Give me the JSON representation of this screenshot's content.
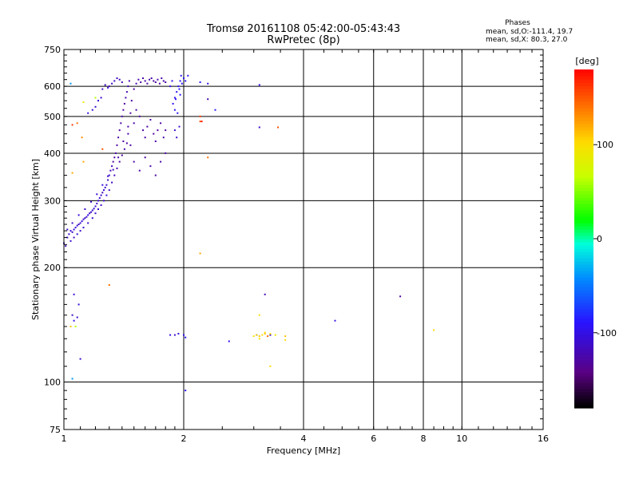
{
  "chart_data": {
    "type": "scatter",
    "title": "Tromsø 20161108 05:42:00-05:43:43",
    "subtitle": "RwPretec (8p)",
    "xlabel": "Frequency [MHz]",
    "ylabel": "Stationary phase Virtual Height [km]",
    "x_scale": "log",
    "y_scale": "log",
    "xlim": [
      1,
      16
    ],
    "ylim": [
      75,
      750
    ],
    "x_ticks": [
      1,
      2,
      4,
      6,
      8,
      10,
      16
    ],
    "x_tick_labels": [
      "1",
      "2",
      "4",
      "6",
      "8",
      "10",
      "16"
    ],
    "y_ticks": [
      75,
      100,
      200,
      300,
      400,
      500,
      600,
      750
    ],
    "y_tick_labels": [
      "75",
      "100",
      "200",
      "300",
      "400",
      "500",
      "600",
      "750"
    ],
    "grid": true,
    "legend": {
      "title": "Phases",
      "lines": [
        "mean, sd,O:-111.4, 19.7",
        "mean, sd,X: 80.3, 27.0"
      ]
    },
    "colorbar": {
      "label": "[deg]",
      "range": [
        -180,
        180
      ],
      "ticks": [
        100,
        0,
        -100
      ],
      "tick_labels": [
        "100",
        "0",
        "-100"
      ]
    },
    "series": [
      {
        "points": [
          [
            1.02,
            240,
            -110
          ],
          [
            1.03,
            245,
            -112
          ],
          [
            1.04,
            250,
            -108
          ],
          [
            1.05,
            248,
            -115
          ],
          [
            1.06,
            252,
            -110
          ],
          [
            1.07,
            255,
            -105
          ],
          [
            1.08,
            258,
            -112
          ],
          [
            1.09,
            260,
            -118
          ],
          [
            1.1,
            262,
            -110
          ],
          [
            1.11,
            265,
            -108
          ],
          [
            1.12,
            268,
            -112
          ],
          [
            1.13,
            270,
            -115
          ],
          [
            1.14,
            272,
            -110
          ],
          [
            1.15,
            275,
            -105
          ],
          [
            1.16,
            278,
            -112
          ],
          [
            1.17,
            280,
            -118
          ],
          [
            1.18,
            283,
            -110
          ],
          [
            1.19,
            286,
            -108
          ],
          [
            1.2,
            290,
            -112
          ],
          [
            1.21,
            295,
            -115
          ],
          [
            1.22,
            300,
            -110
          ],
          [
            1.23,
            305,
            -105
          ],
          [
            1.24,
            310,
            -112
          ],
          [
            1.25,
            315,
            -118
          ],
          [
            1.26,
            320,
            -110
          ],
          [
            1.27,
            325,
            -108
          ],
          [
            1.28,
            330,
            -112
          ],
          [
            1.29,
            340,
            -115
          ],
          [
            1.3,
            350,
            -110
          ],
          [
            1.31,
            360,
            -120
          ],
          [
            1.32,
            370,
            -125
          ],
          [
            1.33,
            380,
            -130
          ],
          [
            1.34,
            390,
            -128
          ],
          [
            1.35,
            400,
            -125
          ],
          [
            1.36,
            420,
            -130
          ],
          [
            1.37,
            440,
            -128
          ],
          [
            1.38,
            460,
            -132
          ],
          [
            1.39,
            480,
            -130
          ],
          [
            1.4,
            500,
            -128
          ],
          [
            1.41,
            520,
            -130
          ],
          [
            1.42,
            540,
            -132
          ],
          [
            1.43,
            560,
            -128
          ],
          [
            1.44,
            580,
            -125
          ],
          [
            1.45,
            600,
            -122
          ],
          [
            1.46,
            620,
            -125
          ],
          [
            1.04,
            235,
            -110
          ],
          [
            1.06,
            240,
            -115
          ],
          [
            1.08,
            245,
            -108
          ],
          [
            1.1,
            250,
            -112
          ],
          [
            1.12,
            255,
            -110
          ],
          [
            1.15,
            262,
            -112
          ],
          [
            1.18,
            270,
            -110
          ],
          [
            1.2,
            278,
            -108
          ],
          [
            1.22,
            285,
            -112
          ],
          [
            1.24,
            292,
            -115
          ],
          [
            1.26,
            300,
            -110
          ],
          [
            1.28,
            310,
            -105
          ],
          [
            1.3,
            320,
            -112
          ],
          [
            1.32,
            335,
            -118
          ],
          [
            1.34,
            350,
            -120
          ],
          [
            1.36,
            365,
            -125
          ],
          [
            1.38,
            380,
            -128
          ],
          [
            1.4,
            395,
            -130
          ],
          [
            1.42,
            410,
            -128
          ],
          [
            1.44,
            425,
            -130
          ],
          [
            1.01,
            228,
            -115
          ],
          [
            1.0,
            232,
            -118
          ],
          [
            1.02,
            252,
            -112
          ],
          [
            1.05,
            262,
            -110
          ],
          [
            1.09,
            275,
            -108
          ],
          [
            1.13,
            285,
            -112
          ],
          [
            1.17,
            298,
            -115
          ],
          [
            1.21,
            312,
            -110
          ],
          [
            1.25,
            330,
            -105
          ],
          [
            1.29,
            348,
            -112
          ],
          [
            1.33,
            362,
            -118
          ],
          [
            1.37,
            390,
            -125
          ],
          [
            1.41,
            430,
            -130
          ],
          [
            1.45,
            470,
            -128
          ],
          [
            1.47,
            510,
            -132
          ],
          [
            1.48,
            550,
            -128
          ],
          [
            1.5,
            590,
            -125
          ],
          [
            1.52,
            610,
            -122
          ],
          [
            1.54,
            625,
            -125
          ],
          [
            1.56,
            615,
            -130
          ],
          [
            1.58,
            630,
            -128
          ],
          [
            1.6,
            620,
            -125
          ],
          [
            1.62,
            610,
            -130
          ],
          [
            1.64,
            625,
            -128
          ],
          [
            1.66,
            630,
            -125
          ],
          [
            1.68,
            620,
            -130
          ],
          [
            1.7,
            615,
            -128
          ],
          [
            1.72,
            625,
            -125
          ],
          [
            1.74,
            610,
            -130
          ],
          [
            1.76,
            630,
            -128
          ],
          [
            1.78,
            620,
            -125
          ],
          [
            1.8,
            615,
            -130
          ],
          [
            1.45,
            450,
            -130
          ],
          [
            1.47,
            420,
            -128
          ],
          [
            1.5,
            480,
            -130
          ],
          [
            1.52,
            520,
            -128
          ],
          [
            1.55,
            500,
            -132
          ],
          [
            1.58,
            460,
            -130
          ],
          [
            1.6,
            440,
            -128
          ],
          [
            1.62,
            470,
            -130
          ],
          [
            1.65,
            490,
            -128
          ],
          [
            1.68,
            450,
            -132
          ],
          [
            1.7,
            430,
            -130
          ],
          [
            1.72,
            460,
            -128
          ],
          [
            1.75,
            480,
            -130
          ],
          [
            1.78,
            440,
            -128
          ],
          [
            1.8,
            460,
            -132
          ],
          [
            1.5,
            380,
            -130
          ],
          [
            1.55,
            360,
            -128
          ],
          [
            1.6,
            390,
            -130
          ],
          [
            1.65,
            370,
            -128
          ],
          [
            1.7,
            350,
            -132
          ],
          [
            1.75,
            380,
            -130
          ],
          [
            1.8,
            400,
            -128
          ],
          [
            1.3,
            600,
            -120
          ],
          [
            1.32,
            610,
            -118
          ],
          [
            1.34,
            620,
            -115
          ],
          [
            1.36,
            630,
            -118
          ],
          [
            1.38,
            625,
            -120
          ],
          [
            1.4,
            615,
            -122
          ],
          [
            1.25,
            590,
            -112
          ],
          [
            1.27,
            605,
            -115
          ],
          [
            1.29,
            595,
            -110
          ],
          [
            1.18,
            520,
            -108
          ],
          [
            1.15,
            510,
            -105
          ],
          [
            1.2,
            530,
            -110
          ],
          [
            1.22,
            550,
            -112
          ],
          [
            1.24,
            560,
            -115
          ],
          [
            1.9,
            560,
            -100
          ],
          [
            1.92,
            580,
            -95
          ],
          [
            1.94,
            600,
            -90
          ],
          [
            1.96,
            620,
            -92
          ],
          [
            1.98,
            610,
            -88
          ],
          [
            2.0,
            630,
            -90
          ],
          [
            1.88,
            540,
            -95
          ],
          [
            1.9,
            520,
            -92
          ],
          [
            1.93,
            510,
            -95
          ],
          [
            1.95,
            590,
            -90
          ],
          [
            1.97,
            640,
            -88
          ],
          [
            2.02,
            620,
            -90
          ],
          [
            2.05,
            640,
            -92
          ],
          [
            1.85,
            600,
            -95
          ],
          [
            1.87,
            620,
            -98
          ],
          [
            1.96,
            570,
            -88
          ],
          [
            1.91,
            555,
            -92
          ],
          [
            1.95,
            470,
            -110
          ],
          [
            1.9,
            460,
            -112
          ],
          [
            1.92,
            440,
            -115
          ],
          [
            1.06,
            170,
            -110
          ],
          [
            1.09,
            160,
            -105
          ],
          [
            1.05,
            150,
            -112
          ],
          [
            1.08,
            148,
            -108
          ],
          [
            1.06,
            145,
            -100
          ],
          [
            1.1,
            115,
            -110
          ],
          [
            1.85,
            133,
            -105
          ],
          [
            1.9,
            133,
            -110
          ],
          [
            1.94,
            134,
            -108
          ],
          [
            2.0,
            133,
            -100
          ],
          [
            2.02,
            131,
            -90
          ],
          [
            2.6,
            128,
            -95
          ],
          [
            3.05,
            133,
            -110
          ],
          [
            3.2,
            170,
            -120
          ],
          [
            3.3,
            133,
            -115
          ],
          [
            4.8,
            145,
            -100
          ],
          [
            7.0,
            168,
            -130
          ],
          [
            3.1,
            468,
            -112
          ],
          [
            2.3,
            555,
            -125
          ],
          [
            2.4,
            520,
            -90
          ],
          [
            3.1,
            605,
            -95
          ],
          [
            2.3,
            610,
            -100
          ],
          [
            2.02,
            95,
            -90
          ],
          [
            2.2,
            615,
            -88
          ]
        ]
      },
      {
        "points": [
          [
            1.04,
            610,
            -40
          ],
          [
            1.08,
            480,
            140
          ],
          [
            1.05,
            475,
            160
          ],
          [
            1.12,
            380,
            120
          ],
          [
            1.05,
            355,
            120
          ],
          [
            1.11,
            440,
            130
          ],
          [
            1.2,
            560,
            60
          ],
          [
            1.12,
            545,
            90
          ],
          [
            1.25,
            410,
            150
          ],
          [
            1.3,
            180,
            140
          ],
          [
            1.05,
            102,
            -40
          ],
          [
            1.04,
            140,
            110
          ],
          [
            1.07,
            140,
            60
          ],
          [
            2.2,
            485,
            150
          ],
          [
            2.2,
            500,
            160
          ],
          [
            2.3,
            390,
            140
          ],
          [
            2.2,
            218,
            120
          ],
          [
            3.0,
            132,
            100
          ],
          [
            3.05,
            133,
            100
          ],
          [
            3.1,
            132,
            110
          ],
          [
            3.15,
            133,
            100
          ],
          [
            3.2,
            134,
            110
          ],
          [
            3.25,
            132,
            140
          ],
          [
            3.3,
            134,
            100
          ],
          [
            3.1,
            130,
            90
          ],
          [
            3.2,
            135,
            100
          ],
          [
            3.3,
            110,
            100
          ],
          [
            3.4,
            133,
            90
          ],
          [
            3.6,
            129,
            100
          ],
          [
            3.6,
            132,
            110
          ],
          [
            3.45,
            468,
            150
          ],
          [
            3.1,
            150,
            100
          ],
          [
            8.5,
            137,
            100
          ],
          [
            2.22,
            485,
            170
          ]
        ]
      }
    ]
  }
}
